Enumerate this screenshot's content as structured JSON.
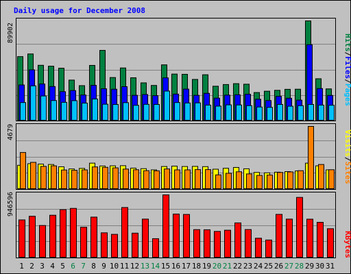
{
  "title": "Daily usage for December 2008",
  "colors": {
    "hits": "#008040",
    "files": "#0000ff",
    "pages": "#00c0ff",
    "visits": "#ffff00",
    "sites": "#ff8000",
    "kbytes": "#ff0000",
    "title": "#0000ff",
    "weekend_label": "#008040",
    "panel_bg": "#c0c0c0",
    "frame": "#000000"
  },
  "panel_labels": {
    "top": {
      "parts": [
        "Pages",
        "Files",
        "Hits"
      ],
      "separator": "/"
    },
    "middle": {
      "parts": [
        "Sites",
        "Visits"
      ],
      "separator": "/"
    },
    "bottom": {
      "parts": [
        "KBytes"
      ],
      "separator": "/"
    }
  },
  "y_max_labels": {
    "top": "89902",
    "middle": "4679",
    "bottom": "946596"
  },
  "chart_data": [
    {
      "type": "bar",
      "panel": "hits-files-pages",
      "title": "Daily usage for December 2008",
      "ylabel": "Pages/Files/Hits",
      "ylim": [
        0,
        89902
      ],
      "categories": [
        "1",
        "2",
        "3",
        "4",
        "5",
        "6",
        "7",
        "8",
        "9",
        "10",
        "11",
        "12",
        "13",
        "14",
        "15",
        "16",
        "17",
        "18",
        "19",
        "20",
        "21",
        "22",
        "23",
        "24",
        "25",
        "26",
        "27",
        "28",
        "29",
        "30",
        "31"
      ],
      "weekend_days": [
        6,
        7,
        13,
        14,
        20,
        21,
        27,
        28
      ],
      "series": [
        {
          "name": "Hits",
          "values": [
            57800,
            60200,
            50000,
            49200,
            47400,
            36700,
            31700,
            49900,
            63400,
            39000,
            47600,
            38800,
            34200,
            31900,
            50400,
            42100,
            41900,
            37300,
            41500,
            31200,
            32700,
            33500,
            33000,
            25500,
            26700,
            27500,
            28400,
            28500,
            89902,
            37900,
            28800
          ]
        },
        {
          "name": "Files",
          "values": [
            32300,
            45900,
            33200,
            30900,
            26300,
            27300,
            23300,
            32000,
            28900,
            28500,
            30800,
            23000,
            23700,
            22700,
            38700,
            24100,
            28600,
            23000,
            24800,
            20500,
            23200,
            23500,
            24000,
            19500,
            18300,
            22100,
            20400,
            18700,
            68500,
            29100,
            22900
          ]
        },
        {
          "name": "Pages",
          "values": [
            16500,
            31500,
            22400,
            18300,
            16700,
            18200,
            16000,
            19700,
            15000,
            14800,
            16400,
            14000,
            14900,
            14800,
            26800,
            16500,
            16100,
            16200,
            14200,
            13300,
            14400,
            14300,
            13700,
            12500,
            12200,
            14800,
            13200,
            13700,
            14800,
            14200,
            14100
          ]
        }
      ]
    },
    {
      "type": "bar",
      "panel": "visits-sites",
      "ylabel": "Sites/Visits",
      "ylim": [
        0,
        4679
      ],
      "categories": [
        "1",
        "2",
        "3",
        "4",
        "5",
        "6",
        "7",
        "8",
        "9",
        "10",
        "11",
        "12",
        "13",
        "14",
        "15",
        "16",
        "17",
        "18",
        "19",
        "20",
        "21",
        "22",
        "23",
        "24",
        "25",
        "26",
        "27",
        "28",
        "29",
        "30",
        "31"
      ],
      "series": [
        {
          "name": "Visits",
          "values": [
            1790,
            1910,
            1880,
            1850,
            1680,
            1520,
            1560,
            1950,
            1740,
            1750,
            1760,
            1580,
            1540,
            1450,
            1700,
            1730,
            1700,
            1710,
            1690,
            1500,
            1570,
            1630,
            1530,
            1260,
            1230,
            1280,
            1320,
            1370,
            1950,
            1750,
            1450
          ]
        },
        {
          "name": "Sites",
          "values": [
            2740,
            2010,
            1710,
            1750,
            1440,
            1420,
            1450,
            1670,
            1640,
            1600,
            1510,
            1460,
            1390,
            1380,
            1520,
            1450,
            1450,
            1470,
            1470,
            1080,
            1200,
            1310,
            1150,
            1040,
            1070,
            1260,
            1300,
            1390,
            4679,
            1850,
            1460
          ]
        }
      ]
    },
    {
      "type": "bar",
      "panel": "kbytes",
      "ylabel": "KBytes",
      "ylim": [
        0,
        946596
      ],
      "categories": [
        "1",
        "2",
        "3",
        "4",
        "5",
        "6",
        "7",
        "8",
        "9",
        "10",
        "11",
        "12",
        "13",
        "14",
        "15",
        "16",
        "17",
        "18",
        "19",
        "20",
        "21",
        "22",
        "23",
        "24",
        "25",
        "26",
        "27",
        "28",
        "29",
        "30",
        "31"
      ],
      "series": [
        {
          "name": "KBytes",
          "values": [
            571000,
            626000,
            487000,
            641000,
            725000,
            744000,
            461000,
            613000,
            377000,
            354000,
            757000,
            372000,
            583000,
            289000,
            946596,
            659000,
            653000,
            425000,
            423000,
            398000,
            416000,
            526000,
            426000,
            296000,
            269000,
            654000,
            583000,
            909000,
            582000,
            535000,
            439000
          ]
        }
      ]
    }
  ]
}
